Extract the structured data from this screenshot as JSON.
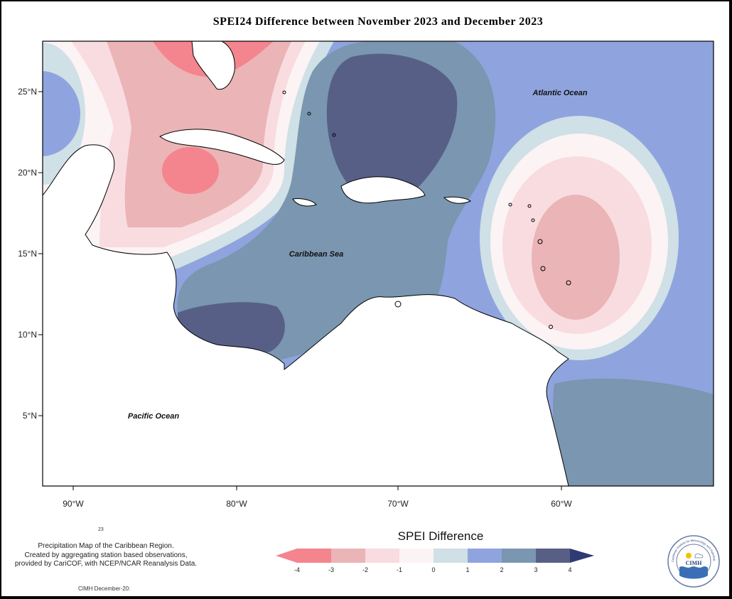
{
  "title": "SPEI24 Difference between November 2023 and December 2023",
  "map": {
    "lat_ticks": [
      "25°N",
      "20°N",
      "15°N",
      "10°N",
      "5°N"
    ],
    "lon_ticks": [
      "90°W",
      "80°W",
      "70°W",
      "60°W"
    ],
    "ocean_labels": {
      "atlantic": "Atlantic Ocean",
      "caribbean": "Caribbean Sea",
      "pacific": "Pacific Ocean"
    }
  },
  "legend": {
    "title": "SPEI Difference",
    "ticks": [
      "-4",
      "-3",
      "-2",
      "-1",
      "0",
      "1",
      "2",
      "3",
      "4"
    ],
    "colors": [
      "#f4848d",
      "#ebb4b6",
      "#f8dce0",
      "#fcf3f4",
      "#cfe0e6",
      "#8fa4de",
      "#7a96b0",
      "#575f87",
      "#2f3a73"
    ]
  },
  "footnote": {
    "small_number": "23",
    "line1": "Precipitation Map of the Caribbean Region.",
    "line2": "Created by aggregating station based observations,",
    "line3": "provided by CariCOF, with NCEP/NCAR Reanalysis Data.",
    "credit": "CIMH December-20:"
  },
  "logo": {
    "abbr": "CIMH",
    "ring_text": "Caribbean Institute for Meteorology and Hydrology"
  }
}
